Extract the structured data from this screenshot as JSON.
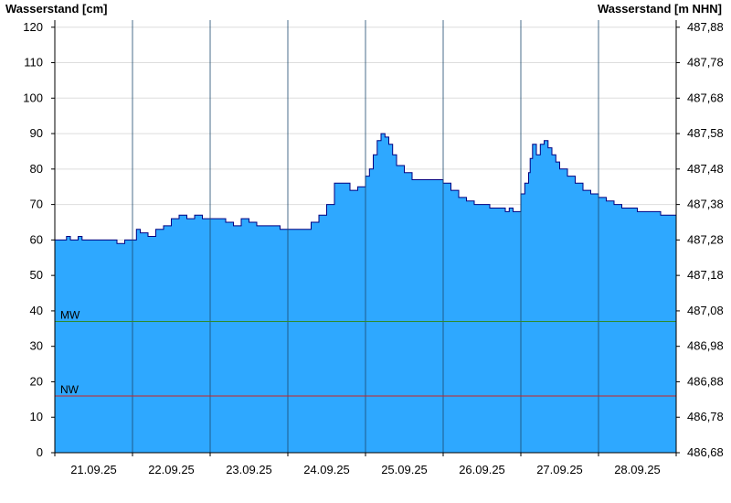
{
  "chart_data": {
    "type": "area",
    "ylabel_left": "Wasserstand [cm]",
    "ylabel_right": "Wasserstand [m NHN]",
    "ylim": [
      0,
      122
    ],
    "yticks_left": [
      0,
      10,
      20,
      30,
      40,
      50,
      60,
      70,
      80,
      90,
      100,
      110,
      120
    ],
    "yticks_right": [
      "486,68",
      "486,78",
      "486,88",
      "486,98",
      "487,08",
      "487,18",
      "487,28",
      "487,38",
      "487,48",
      "487,58",
      "487,68",
      "487,78",
      "487,88"
    ],
    "x_days": [
      "21.09.25",
      "22.09.25",
      "23.09.25",
      "24.09.25",
      "25.09.25",
      "26.09.25",
      "27.09.25",
      "28.09.25"
    ],
    "xlim": [
      0,
      8
    ],
    "grid_horizontal": true,
    "reference_lines": [
      {
        "name": "MW",
        "value": 37,
        "color": "#2e8b2e"
      },
      {
        "name": "NW",
        "value": 16,
        "color": "#cc2222"
      }
    ],
    "fill_color": "#2ea8ff",
    "line_color": "#000080",
    "series": [
      {
        "x": [
          0,
          0.1,
          0.15,
          0.2,
          0.3,
          0.35,
          0.5,
          0.6,
          0.75,
          0.8,
          0.9,
          1.0,
          1.05,
          1.1,
          1.2,
          1.3,
          1.4,
          1.5,
          1.6,
          1.7,
          1.8,
          1.9,
          2.0,
          2.1,
          2.2,
          2.3,
          2.4,
          2.5,
          2.6,
          2.7,
          2.8,
          2.9,
          3.0,
          3.1,
          3.2,
          3.3,
          3.4,
          3.5,
          3.6,
          3.7,
          3.8,
          3.9,
          4.0,
          4.05,
          4.1,
          4.15,
          4.2,
          4.25,
          4.3,
          4.35,
          4.4,
          4.5,
          4.6,
          4.7,
          4.8,
          4.9,
          5.0,
          5.1,
          5.2,
          5.3,
          5.4,
          5.5,
          5.6,
          5.7,
          5.8,
          5.85,
          5.9,
          5.95,
          6.0,
          6.05,
          6.1,
          6.12,
          6.15,
          6.2,
          6.25,
          6.3,
          6.35,
          6.4,
          6.45,
          6.5,
          6.6,
          6.7,
          6.8,
          6.9,
          7.0,
          7.1,
          7.2,
          7.3,
          7.4,
          7.5,
          7.6,
          7.7,
          7.8,
          7.9,
          8.0
        ],
        "y": [
          60,
          60,
          61,
          60,
          61,
          60,
          60,
          60,
          60,
          59,
          60,
          60,
          63,
          62,
          61,
          63,
          64,
          66,
          67,
          66,
          67,
          66,
          66,
          66,
          65,
          64,
          66,
          65,
          64,
          64,
          64,
          63,
          63,
          63,
          63,
          65,
          67,
          70,
          76,
          76,
          74,
          75,
          78,
          80,
          84,
          88,
          90,
          89,
          87,
          84,
          81,
          79,
          77,
          77,
          77,
          77,
          76,
          74,
          72,
          71,
          70,
          70,
          69,
          69,
          68,
          69,
          68,
          68,
          73,
          76,
          79,
          83,
          87,
          84,
          87,
          88,
          86,
          84,
          82,
          80,
          78,
          76,
          74,
          73,
          72,
          71,
          70,
          69,
          69,
          68,
          68,
          68,
          67,
          67,
          67
        ]
      }
    ]
  }
}
